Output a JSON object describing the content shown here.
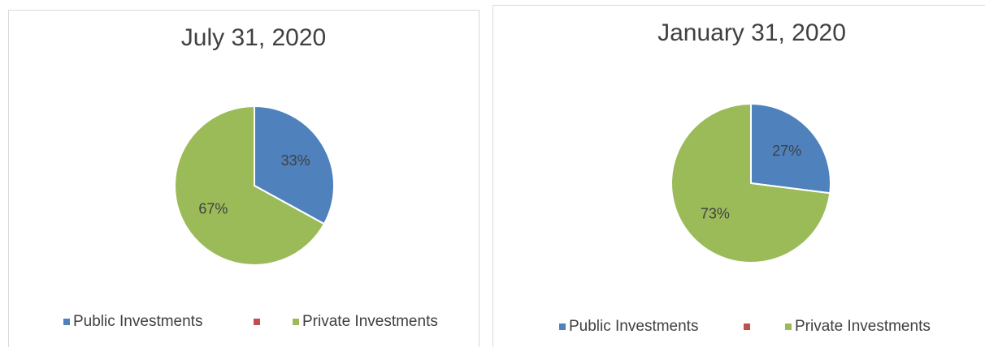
{
  "chart_data": [
    {
      "type": "pie",
      "title": "July 31, 2020",
      "categories": [
        "Public Investments",
        null,
        "Private Investments"
      ],
      "values": [
        33,
        0,
        67
      ],
      "value_labels": [
        "33%",
        null,
        "67%"
      ],
      "colors": [
        "#4f81bd",
        "#c0504d",
        "#9bbb59"
      ],
      "legend": "bottom"
    },
    {
      "type": "pie",
      "title": "January 31, 2020",
      "categories": [
        "Public Investments",
        null,
        "Private Investments"
      ],
      "values": [
        27,
        0,
        73
      ],
      "value_labels": [
        "27%",
        null,
        "73%"
      ],
      "colors": [
        "#4f81bd",
        "#c0504d",
        "#9bbb59"
      ],
      "legend": "bottom"
    }
  ]
}
